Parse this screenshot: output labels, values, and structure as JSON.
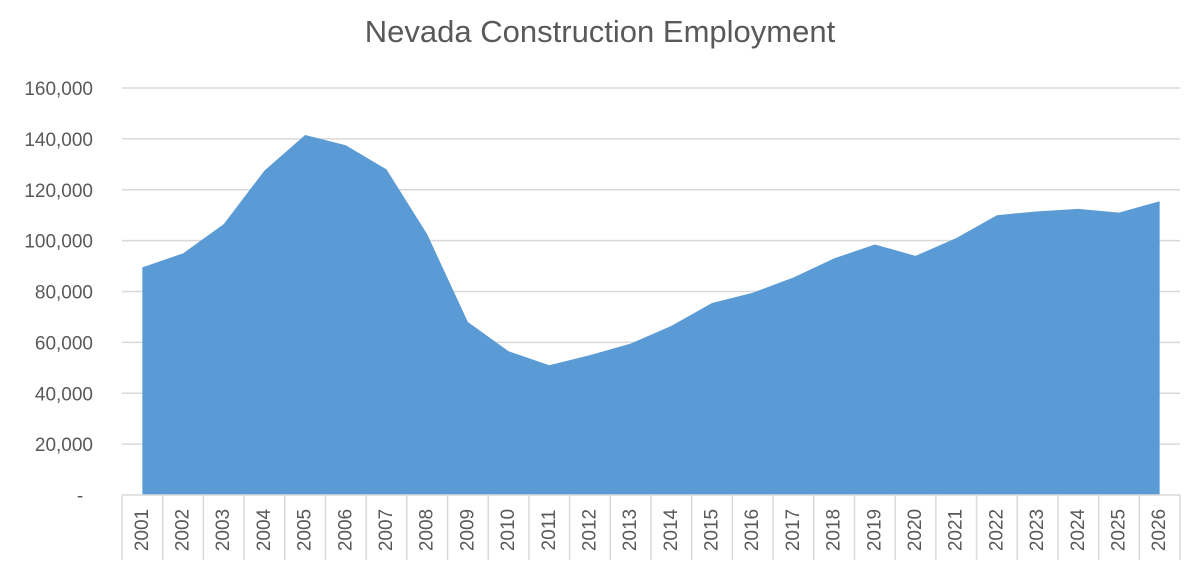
{
  "chart_data": {
    "type": "area",
    "title": "Nevada Construction Employment",
    "xlabel": "",
    "ylabel": "",
    "x": [
      "2001",
      "2002",
      "2003",
      "2004",
      "2005",
      "2006",
      "2007",
      "2008",
      "2009",
      "2010",
      "2011",
      "2012",
      "2013",
      "2014",
      "2015",
      "2016",
      "2017",
      "2018",
      "2019",
      "2020",
      "2021",
      "2022",
      "2023",
      "2024",
      "2025",
      "2026"
    ],
    "series": [
      {
        "values": [
          89500,
          95000,
          106500,
          127500,
          141500,
          137500,
          128000,
          102500,
          68000,
          56500,
          51000,
          55000,
          59500,
          66500,
          75500,
          79500,
          85500,
          93000,
          98500,
          94000,
          101000,
          110000,
          111500,
          112500,
          111000,
          115500
        ]
      }
    ],
    "y_ticks": [
      "-",
      "20,000",
      "40,000",
      "60,000",
      "80,000",
      "100,000",
      "120,000",
      "140,000",
      "160,000"
    ],
    "ylim": [
      0,
      160000
    ],
    "grid": true,
    "legend": "none",
    "fill_color": "#5B9BD5",
    "grid_color": "#D9D9D9",
    "text_color": "#595959"
  }
}
